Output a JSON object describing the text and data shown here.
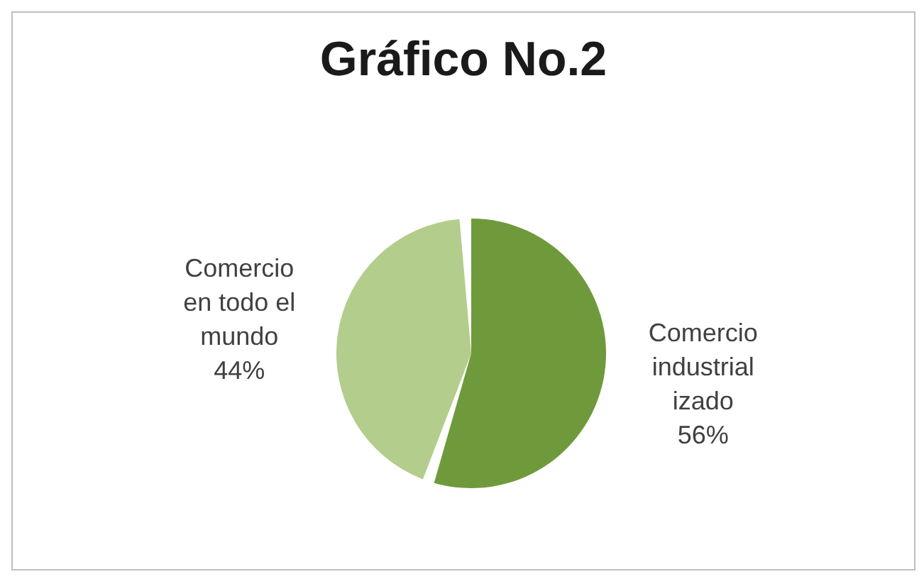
{
  "chart_data": {
    "type": "pie",
    "title": "Gráfico No.2",
    "categories": [
      "Comercio industrializado",
      "Comercio en todo el mundo"
    ],
    "values": [
      56,
      44
    ],
    "colors": [
      "#6f9a3c",
      "#b3cd8c"
    ],
    "value_labels": [
      "56%",
      "44%"
    ],
    "legend": false
  }
}
